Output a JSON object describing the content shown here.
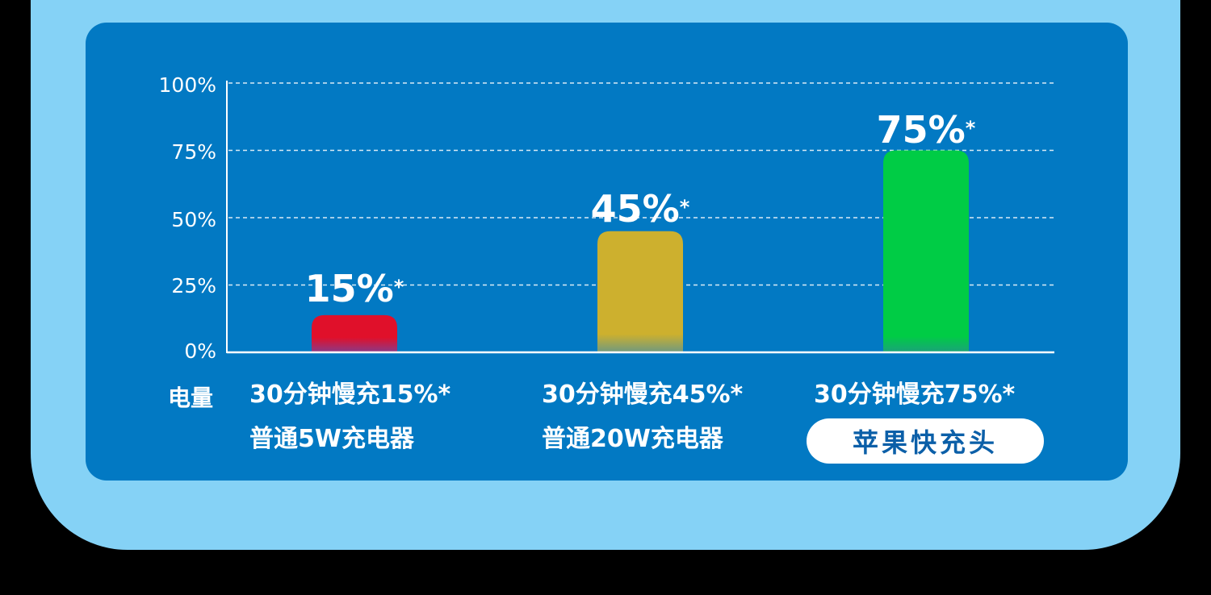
{
  "chart_data": {
    "type": "bar",
    "categories": [
      "普通5W充电器",
      "普通20W充电器",
      "苹果快充头"
    ],
    "values": [
      15,
      45,
      75
    ],
    "value_labels": [
      "15%",
      "45%",
      "75%"
    ],
    "value_marker": "*",
    "charge_labels": [
      "30分钟慢充15%*",
      "30分钟慢充45%*",
      "30分钟慢充75%*"
    ],
    "row_label": "电量",
    "yticks": [
      "100%",
      "75%",
      "50%",
      "25%",
      "0%"
    ],
    "ylim": [
      0,
      100
    ],
    "grid": "dashed",
    "highlight_category": "苹果快充头",
    "colors": [
      "#e0102a",
      "#cdb02e",
      "#00cc45"
    ]
  }
}
